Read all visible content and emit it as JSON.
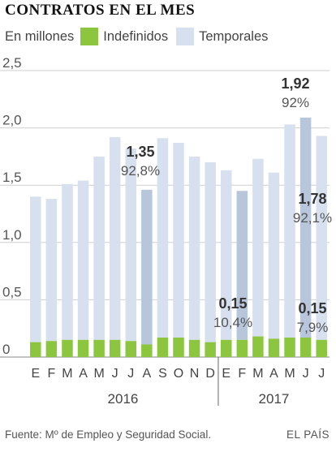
{
  "header": {
    "title": "CONTRATOS EN EL MES",
    "unit": "En millones",
    "legend_indefinidos": "Indefinidos",
    "legend_temporales": "Temporales"
  },
  "colors": {
    "indefinidos": "#8cc63f",
    "temporales": "#d6e0ee",
    "highlight": "#b7c6da",
    "axis": "#999999",
    "grid": "#cfcfcf"
  },
  "footer": {
    "source": "Fuente: Mº de Empleo y Seguridad Social.",
    "brand": "EL PAÍS"
  },
  "chart_data": {
    "type": "bar",
    "stacked": true,
    "title": "CONTRATOS EN EL MES",
    "ylabel": "En millones",
    "ylim": [
      0,
      2.5
    ],
    "yticks": [
      "0",
      "0,5",
      "1,0",
      "1,5",
      "2,0",
      "2,5"
    ],
    "grid": true,
    "categories": [
      "E",
      "F",
      "M",
      "A",
      "M",
      "J",
      "J",
      "A",
      "S",
      "O",
      "N",
      "D",
      "E",
      "F",
      "M",
      "A",
      "M",
      "J",
      "J"
    ],
    "years": [
      {
        "label": "2016",
        "start": 0,
        "end": 11
      },
      {
        "label": "2017",
        "start": 12,
        "end": 18
      }
    ],
    "highlighted": [
      7,
      13,
      17
    ],
    "series": [
      {
        "name": "Indefinidos",
        "values": [
          0.13,
          0.14,
          0.15,
          0.15,
          0.15,
          0.15,
          0.14,
          0.11,
          0.17,
          0.17,
          0.15,
          0.13,
          0.15,
          0.15,
          0.18,
          0.16,
          0.17,
          0.17,
          0.15
        ]
      },
      {
        "name": "Temporales",
        "values": [
          1.27,
          1.24,
          1.36,
          1.39,
          1.6,
          1.77,
          1.68,
          1.35,
          1.74,
          1.7,
          1.6,
          1.57,
          1.48,
          1.3,
          1.55,
          1.45,
          1.86,
          1.92,
          1.78
        ]
      }
    ],
    "annotations": [
      {
        "value": "1,35",
        "pct": "92,8%"
      },
      {
        "value": "1,92",
        "pct": "92%"
      },
      {
        "value": "1,78",
        "pct": "92,1%"
      },
      {
        "value": "0,15",
        "pct": "10,4%"
      },
      {
        "value": "0,15",
        "pct": "7,9%"
      }
    ]
  }
}
